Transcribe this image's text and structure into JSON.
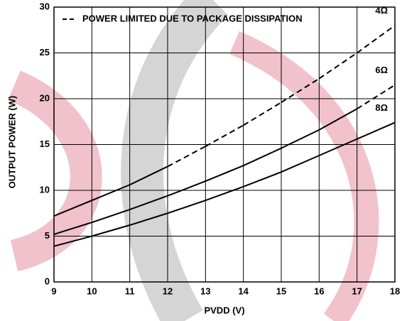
{
  "chart_data": {
    "type": "line",
    "x_label": "PVDD (V)",
    "y_label": "OUTPUT POWER (W)",
    "annotation": "POWER LIMITED DUE TO PACKAGE DISSIPATION",
    "x": [
      9,
      10,
      11,
      12,
      13,
      14,
      15,
      16,
      17,
      18
    ],
    "series": [
      {
        "name": "4Ω",
        "color": "#000000",
        "dashed_from": 12,
        "values": [
          7.2,
          8.9,
          10.6,
          12.6,
          14.8,
          17.1,
          19.6,
          22.2,
          25.0,
          28.0
        ]
      },
      {
        "name": "6Ω",
        "color": "#000000",
        "dashed_from": 17,
        "values": [
          5.2,
          6.5,
          7.9,
          9.4,
          11.0,
          12.7,
          14.6,
          16.6,
          18.9,
          21.5
        ]
      },
      {
        "name": "8Ω",
        "color": "#000000",
        "values": [
          3.9,
          5.0,
          6.2,
          7.5,
          8.9,
          10.4,
          12.0,
          13.8,
          15.6,
          17.4
        ]
      }
    ],
    "xlim": [
      9,
      18
    ],
    "xticks": [
      9,
      10,
      11,
      12,
      13,
      14,
      15,
      16,
      17,
      18
    ],
    "ylim": [
      0,
      30
    ],
    "yticks": [
      0,
      5,
      10,
      15,
      20,
      25,
      30
    ],
    "grid": true
  }
}
